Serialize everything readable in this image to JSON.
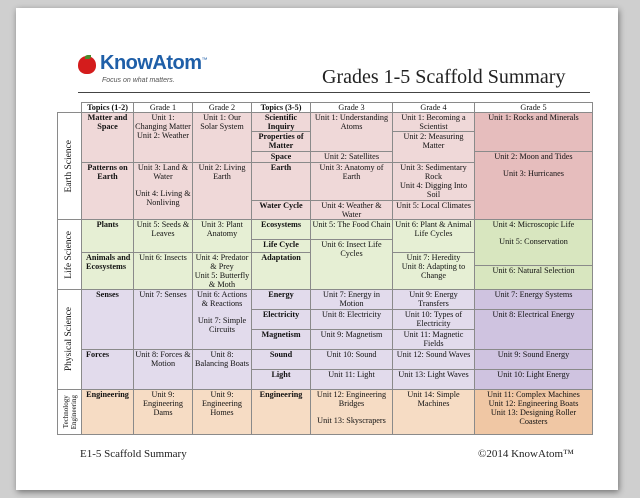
{
  "header": {
    "logo_name": "KnowAtom",
    "logo_tm": "™",
    "logo_tagline": "Focus on what matters.",
    "title": "Grades 1-5 Scaffold Summary"
  },
  "table": {
    "columns": [
      "Topics (1-2)",
      "Grade 1",
      "Grade 2",
      "Topics (3-5)",
      "Grade 3",
      "Grade 4",
      "Grade 5"
    ],
    "disciplines": {
      "earth": "Earth Science",
      "life": "Life Science",
      "physical": "Physical Science",
      "tech_line1": "Technology",
      "tech_line2": "Engineering"
    },
    "earth": {
      "t12_a": "Matter and Space",
      "t12_b": "Patterns on Earth",
      "g1_a1": "Unit 1: Changing Matter",
      "g1_a2": "Unit 2: Weather",
      "g1_b1": "Unit 3: Land & Water",
      "g1_b2": "Unit 4: Living & Nonliving",
      "g2_a": "Unit 1: Our Solar System",
      "g2_b": "Unit 2: Living Earth",
      "t35": [
        "Scientific Inquiry",
        "Properties of Matter",
        "Space",
        "Earth",
        "Water Cycle"
      ],
      "g3": [
        "Unit 1: Understanding Atoms",
        "",
        "Unit 2: Satellites",
        "Unit 3: Anatomy of Earth",
        "Unit 4: Weather & Water"
      ],
      "g4_1": "Unit 1: Becoming a Scientist",
      "g4_2": "Unit 2: Measuring Matter",
      "g4_3": "Unit 3: Sedimentary Rock",
      "g4_4": "Unit 4: Digging Into Soil",
      "g4_5": "Unit 5: Local Climates",
      "g5_1": "Unit 1: Rocks and Minerals",
      "g5_2": "Unit 2: Moon and Tides",
      "g5_3": "Unit 3: Hurricanes"
    },
    "life": {
      "t12_a": "Plants",
      "t12_b": "Animals and Ecosystems",
      "g1_a": "Unit 5: Seeds & Leaves",
      "g1_b": "Unit 6: Insects",
      "g2_a": "Unit 3: Plant Anatomy",
      "g2_b1": "Unit 4: Predator & Prey",
      "g2_b2": "Unit 5: Butterfly & Moth",
      "t35": [
        "Ecosystems",
        "Life Cycle",
        "Adaptation"
      ],
      "g3_1": "Unit 5: The Food Chain",
      "g3_2": "Unit 6: Insect Life Cycles",
      "g4_1": "Unit 6: Plant & Animal Life Cycles",
      "g4_2": "Unit 7: Heredity",
      "g4_3": "Unit 8: Adapting to Change",
      "g5_1": "Unit 4: Microscopic Life",
      "g5_2": "Unit 5: Conservation",
      "g5_3": "Unit 6: Natural Selection"
    },
    "physical": {
      "t12_a": "Senses",
      "t12_b": "Forces",
      "g1_a": "Unit 7: Senses",
      "g1_b": "Unit 8: Forces & Motion",
      "g2_a": "Unit 6: Actions & Reactions",
      "g2_b": "Unit 7: Simple Circuits",
      "g2_c": "Unit 8: Balancing Boats",
      "t35": [
        "Energy",
        "Electricity",
        "Magnetism",
        "Sound",
        "Light"
      ],
      "g3": [
        "Unit 7: Energy in Motion",
        "Unit 8: Electricity",
        "Unit 9: Magnetism",
        "Unit 10: Sound",
        "Unit 11: Light"
      ],
      "g4": [
        "Unit 9: Energy Transfers",
        "Unit 10: Types of Electricity",
        "Unit 11: Magnetic Fields",
        "Unit 12: Sound Waves",
        "Unit 13: Light Waves"
      ],
      "g5": [
        "Unit 7: Energy Systems",
        "Unit 8: Electrical Energy",
        "",
        "Unit 9: Sound Energy",
        "Unit 10: Light Energy"
      ]
    },
    "tech": {
      "t12": "Engineering",
      "g1": "Unit 9: Engineering Dams",
      "g2": "Unit 9: Engineering Homes",
      "t35": "Engineering",
      "g3_1": "Unit 12: Engineering Bridges",
      "g3_2": "Unit 13: Skyscrapers",
      "g4": "Unit 14: Simple Machines",
      "g5_1": "Unit 11: Complex Machines",
      "g5_2": "Unit 12: Engineering Boats",
      "g5_3": "Unit 13: Designing Roller Coasters"
    }
  },
  "footer": {
    "left": "E1-5 Scaffold Summary",
    "right": "©2014 KnowAtom™"
  },
  "colors": {
    "earth": "#efd8d8",
    "life": "#e6efd4",
    "physical": "#e2dbec",
    "technology": "#f6dcc4",
    "logo_blue": "#1f5fa8",
    "apple_red": "#d41c1c"
  }
}
